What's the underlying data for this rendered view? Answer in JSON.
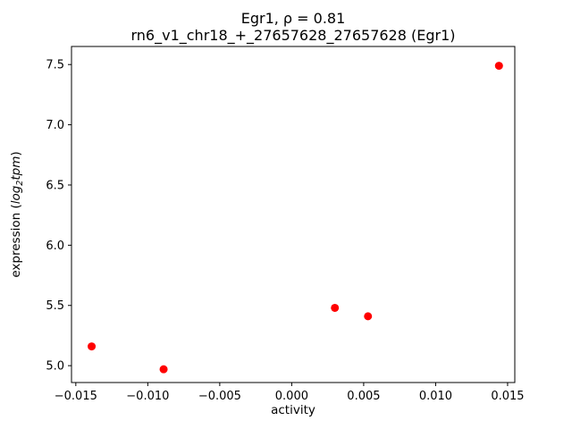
{
  "chart_data": {
    "type": "scatter",
    "title": "Egr1, ρ = 0.81",
    "subtitle": "rn6_v1_chr18_+_27657628_27657628 (Egr1)",
    "xlabel": "activity",
    "ylabel": "expression (log2tpm)",
    "ylabel_parts": {
      "prefix": "expression (",
      "log": "log",
      "sub": "2",
      "tpm": "tpm",
      "suffix": ")"
    },
    "marker_color": "#ff0000",
    "marker_radius": 4.5,
    "points": [
      {
        "x": -0.0139,
        "y": 5.16
      },
      {
        "x": -0.0089,
        "y": 4.97
      },
      {
        "x": 0.003,
        "y": 5.48
      },
      {
        "x": 0.0053,
        "y": 5.41
      },
      {
        "x": 0.0144,
        "y": 7.49
      }
    ],
    "xlim": [
      -0.0153,
      0.0155
    ],
    "ylim": [
      4.86,
      7.65
    ],
    "xticks": {
      "values": [
        -0.015,
        -0.01,
        -0.005,
        0.0,
        0.005,
        0.01,
        0.015
      ],
      "labels": [
        "−0.015",
        "−0.010",
        "−0.005",
        "0.000",
        "0.005",
        "0.010",
        "0.015"
      ]
    },
    "yticks": {
      "values": [
        5.0,
        5.5,
        6.0,
        6.5,
        7.0,
        7.5
      ],
      "labels": [
        "5.0",
        "5.5",
        "6.0",
        "6.5",
        "7.0",
        "7.5"
      ]
    },
    "legend": "none",
    "grid": false
  }
}
